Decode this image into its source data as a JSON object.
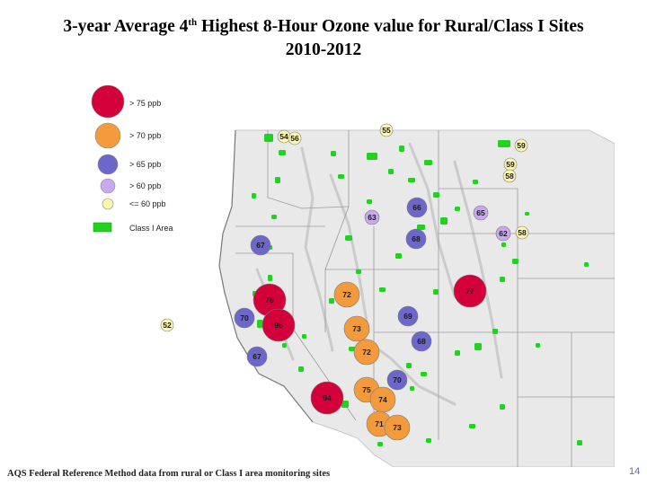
{
  "title": {
    "line1_pre": "3-year Average 4",
    "line1_sup": "th",
    "line1_post": " Highest 8-Hour Ozone value for Rural/Class I Sites",
    "line2": "2010-2012"
  },
  "legend": [
    {
      "label": "> 75 ppb",
      "color": "#d4003a"
    },
    {
      "label": "> 70 ppb",
      "color": "#f39a3c"
    },
    {
      "label": "> 65 ppb",
      "color": "#6c67c8"
    },
    {
      "label": "> 60 ppb",
      "color": "#c8a8ee"
    },
    {
      "label": "<= 60 ppb",
      "color": "#fbf6b0"
    },
    {
      "label": "Class I Area",
      "color": "#1fd31f"
    }
  ],
  "sites": [
    {
      "value": "54",
      "cat": 4
    },
    {
      "value": "56",
      "cat": 4
    },
    {
      "value": "55",
      "cat": 4
    },
    {
      "value": "59",
      "cat": 4
    },
    {
      "value": "59",
      "cat": 4
    },
    {
      "value": "58",
      "cat": 4
    },
    {
      "value": "66",
      "cat": 2
    },
    {
      "value": "63",
      "cat": 3
    },
    {
      "value": "65",
      "cat": 3
    },
    {
      "value": "68",
      "cat": 2
    },
    {
      "value": "62",
      "cat": 3
    },
    {
      "value": "58",
      "cat": 4
    },
    {
      "value": "67",
      "cat": 2
    },
    {
      "value": "77",
      "cat": 0
    },
    {
      "value": "72",
      "cat": 1
    },
    {
      "value": "78",
      "cat": 0
    },
    {
      "value": "69",
      "cat": 2
    },
    {
      "value": "70",
      "cat": 2
    },
    {
      "value": "96",
      "cat": 0
    },
    {
      "value": "73",
      "cat": 1
    },
    {
      "value": "52",
      "cat": 4
    },
    {
      "value": "68",
      "cat": 2
    },
    {
      "value": "72",
      "cat": 1
    },
    {
      "value": "67",
      "cat": 2
    },
    {
      "value": "94",
      "cat": 0
    },
    {
      "value": "70",
      "cat": 2
    },
    {
      "value": "75",
      "cat": 1
    },
    {
      "value": "74",
      "cat": 1
    },
    {
      "value": "71",
      "cat": 1
    },
    {
      "value": "73",
      "cat": 1
    }
  ],
  "footnote": "AQS Federal Reference Method data from rural or Class I area monitoring sites",
  "page_number": "14"
}
